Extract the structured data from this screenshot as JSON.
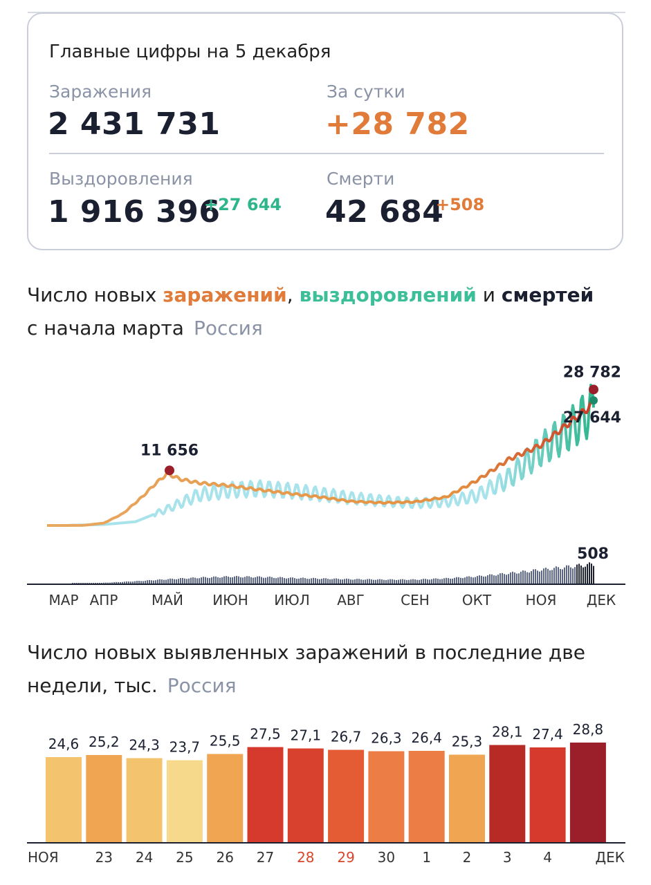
{
  "summary": {
    "title": "Главные цифры на 5 декабря",
    "infections_label": "Заражения",
    "infections_value": "2 431 731",
    "daily_label": "За сутки",
    "daily_value": "+28 782",
    "recoveries_label": "Выздоровления",
    "recoveries_value": "1 916 396",
    "recoveries_delta": "+27 644",
    "deaths_label": "Смерти",
    "deaths_value": "42 684",
    "deaths_delta": "+508"
  },
  "colors": {
    "infections": "#e07b39",
    "recoveries": "#3cbf98",
    "deaths": "#1b2030",
    "region": "#8a93a6",
    "weekend_tick": "#d9452b"
  },
  "chart1": {
    "heading_prefix": "Число новых ",
    "heading_infections": "заражений",
    "heading_sep": ", ",
    "heading_recoveries": "выздоровлений",
    "heading_and": " и ",
    "heading_deaths": "смертей",
    "heading_line2": "с начала марта",
    "region": "Россия"
  },
  "chart2": {
    "heading_line1": "Число новых выявленных заражений в последние две",
    "heading_line2": "недели, тыс.",
    "region": "Россия"
  },
  "chart_data": [
    {
      "type": "line",
      "x_ticks": [
        "МАР",
        "АПР",
        "МАЙ",
        "ИЮН",
        "ИЮЛ",
        "АВГ",
        "СЕН",
        "ОКТ",
        "НОЯ",
        "ДЕК"
      ],
      "ylim": [
        0,
        30000
      ],
      "annotations": [
        {
          "label": "11 656",
          "value": 11656,
          "month": 2.0
        },
        {
          "label": "28 782",
          "value": 28782,
          "month": 9.0
        },
        {
          "label": "27 644",
          "value": 27644,
          "month": 9.0
        },
        {
          "label": "508",
          "value": 508,
          "month": 9.0
        }
      ],
      "series": [
        {
          "name": "заражения",
          "months": [
            0,
            0.5,
            1,
            1.3,
            1.6,
            1.8,
            2.0,
            2.2,
            2.5,
            3,
            3.5,
            4,
            4.5,
            5,
            5.5,
            6,
            6.5,
            7,
            7.5,
            8,
            8.5,
            8.8,
            9.0
          ],
          "values": [
            0,
            30,
            500,
            2500,
            6000,
            8700,
            11000,
            9800,
            9000,
            8400,
            7500,
            6700,
            6000,
            5100,
            4800,
            5000,
            6000,
            9500,
            14000,
            17000,
            22000,
            25000,
            28782
          ]
        },
        {
          "name": "выздоровления",
          "months": [
            0,
            1,
            1.5,
            2.0,
            2.5,
            3,
            3.5,
            4,
            4.5,
            5,
            5.5,
            6,
            6.5,
            7,
            7.5,
            8,
            8.5,
            8.8,
            9.0
          ],
          "values": [
            0,
            200,
            800,
            3500,
            6500,
            7500,
            7800,
            7300,
            6600,
            5800,
            5200,
            4700,
            5000,
            6300,
            10000,
            16000,
            20500,
            24000,
            27644
          ]
        },
        {
          "name": "смерти",
          "months": [
            0,
            0.5,
            1,
            1.5,
            2,
            2.5,
            3,
            3.5,
            4,
            4.5,
            5,
            5.5,
            6,
            6.5,
            7,
            7.5,
            8,
            8.5,
            8.8,
            9.0
          ],
          "values": [
            0,
            1,
            20,
            60,
            110,
            150,
            175,
            165,
            140,
            125,
            110,
            100,
            100,
            130,
            180,
            260,
            350,
            430,
            480,
            508
          ]
        }
      ]
    },
    {
      "type": "bar",
      "categories": [
        "ноя 22",
        "ноя 23",
        "ноя 24",
        "ноя 25",
        "ноя 26",
        "ноя 27",
        "ноя 28",
        "ноя 29",
        "ноя 30",
        "дек 1",
        "дек 2",
        "дек 3",
        "дек 4",
        "дек 5"
      ],
      "values": [
        24.6,
        25.2,
        24.3,
        23.7,
        25.5,
        27.5,
        27.1,
        26.7,
        26.3,
        26.4,
        25.3,
        28.1,
        27.4,
        28.8
      ],
      "value_labels": [
        "24,6",
        "25,2",
        "24,3",
        "23,7",
        "25,5",
        "27,5",
        "27,1",
        "26,7",
        "26,3",
        "26,4",
        "25,3",
        "28,1",
        "27,4",
        "28,8"
      ],
      "colors": [
        "#f3c46d",
        "#f0a553",
        "#f3c46d",
        "#f6d98a",
        "#f0a553",
        "#d63a2c",
        "#d8412e",
        "#e45c34",
        "#ec7d44",
        "#ec7d44",
        "#f0a553",
        "#b82a26",
        "#d63a2c",
        "#9a1f2a"
      ],
      "x_tick_labels": [
        "НОЯ",
        "23",
        "24",
        "25",
        "26",
        "27",
        "28",
        "29",
        "30",
        "1",
        "2",
        "3",
        "4",
        "ДЕК"
      ],
      "weekend_ticks": [
        "28",
        "29"
      ],
      "ylim": [
        0,
        29
      ]
    }
  ]
}
